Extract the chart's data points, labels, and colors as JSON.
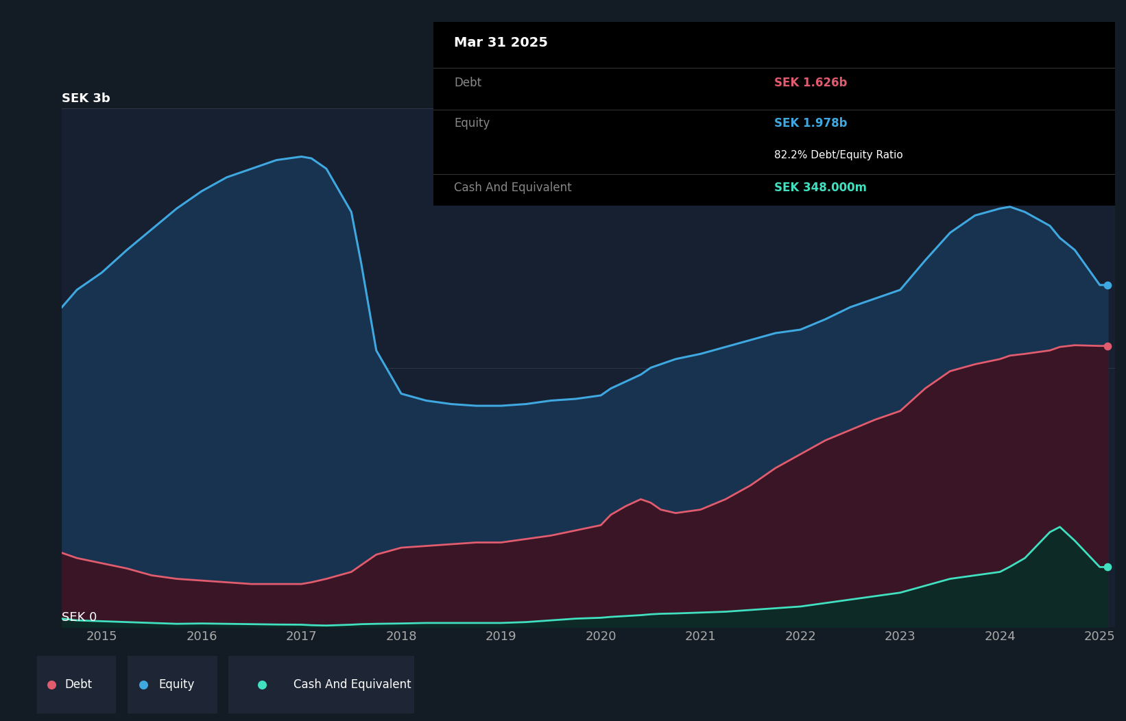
{
  "bg_color": "#131b24",
  "plot_bg_color": "#162030",
  "ylabel_3b": "SEK 3b",
  "ylabel_0": "SEK 0",
  "x_ticks": [
    2015,
    2016,
    2017,
    2018,
    2019,
    2020,
    2021,
    2022,
    2023,
    2024,
    2025
  ],
  "equity_color": "#3fa8e0",
  "debt_color": "#e05c6e",
  "cash_color": "#40e0c0",
  "equity_fill": "#183350",
  "debt_fill": "#3a1525",
  "cash_fill": "#0d2a26",
  "grid_color": "#2a3548",
  "tooltip_bg": "#000000",
  "tooltip_title": "Mar 31 2025",
  "tooltip_debt_label": "Debt",
  "tooltip_debt_value": "SEK 1.626b",
  "tooltip_equity_label": "Equity",
  "tooltip_equity_value": "SEK 1.978b",
  "tooltip_ratio": "82.2% Debt/Equity Ratio",
  "tooltip_cash_label": "Cash And Equivalent",
  "tooltip_cash_value": "SEK 348.000m",
  "legend_debt": "Debt",
  "legend_equity": "Equity",
  "legend_cash": "Cash And Equivalent",
  "years": [
    2014.6,
    2014.75,
    2015.0,
    2015.25,
    2015.5,
    2015.75,
    2016.0,
    2016.25,
    2016.5,
    2016.75,
    2017.0,
    2017.1,
    2017.25,
    2017.5,
    2017.6,
    2017.75,
    2018.0,
    2018.25,
    2018.5,
    2018.75,
    2019.0,
    2019.25,
    2019.5,
    2019.75,
    2020.0,
    2020.1,
    2020.25,
    2020.4,
    2020.5,
    2020.6,
    2020.75,
    2021.0,
    2021.25,
    2021.5,
    2021.75,
    2022.0,
    2022.25,
    2022.5,
    2022.75,
    2023.0,
    2023.25,
    2023.5,
    2023.75,
    2024.0,
    2024.1,
    2024.25,
    2024.5,
    2024.6,
    2024.75,
    2025.0,
    2025.08
  ],
  "equity_values": [
    1.85,
    1.95,
    2.05,
    2.18,
    2.3,
    2.42,
    2.52,
    2.6,
    2.65,
    2.7,
    2.72,
    2.71,
    2.65,
    2.4,
    2.1,
    1.6,
    1.35,
    1.31,
    1.29,
    1.28,
    1.28,
    1.29,
    1.31,
    1.32,
    1.34,
    1.38,
    1.42,
    1.46,
    1.5,
    1.52,
    1.55,
    1.58,
    1.62,
    1.66,
    1.7,
    1.72,
    1.78,
    1.85,
    1.9,
    1.95,
    2.12,
    2.28,
    2.38,
    2.42,
    2.43,
    2.4,
    2.32,
    2.25,
    2.18,
    1.978,
    1.978
  ],
  "debt_values": [
    0.43,
    0.4,
    0.37,
    0.34,
    0.3,
    0.28,
    0.27,
    0.26,
    0.25,
    0.25,
    0.25,
    0.26,
    0.28,
    0.32,
    0.36,
    0.42,
    0.46,
    0.47,
    0.48,
    0.49,
    0.49,
    0.51,
    0.53,
    0.56,
    0.59,
    0.65,
    0.7,
    0.74,
    0.72,
    0.68,
    0.66,
    0.68,
    0.74,
    0.82,
    0.92,
    1.0,
    1.08,
    1.14,
    1.2,
    1.25,
    1.38,
    1.48,
    1.52,
    1.55,
    1.57,
    1.58,
    1.6,
    1.62,
    1.63,
    1.626,
    1.626
  ],
  "cash_values": [
    0.05,
    0.04,
    0.035,
    0.03,
    0.025,
    0.02,
    0.022,
    0.02,
    0.018,
    0.016,
    0.015,
    0.012,
    0.01,
    0.015,
    0.018,
    0.02,
    0.022,
    0.025,
    0.025,
    0.025,
    0.025,
    0.03,
    0.04,
    0.05,
    0.055,
    0.06,
    0.065,
    0.07,
    0.075,
    0.078,
    0.08,
    0.085,
    0.09,
    0.1,
    0.11,
    0.12,
    0.14,
    0.16,
    0.18,
    0.2,
    0.24,
    0.28,
    0.3,
    0.32,
    0.35,
    0.4,
    0.55,
    0.58,
    0.5,
    0.348,
    0.348
  ],
  "ylim": [
    0,
    3.0
  ],
  "xlim": [
    2014.6,
    2025.15
  ]
}
